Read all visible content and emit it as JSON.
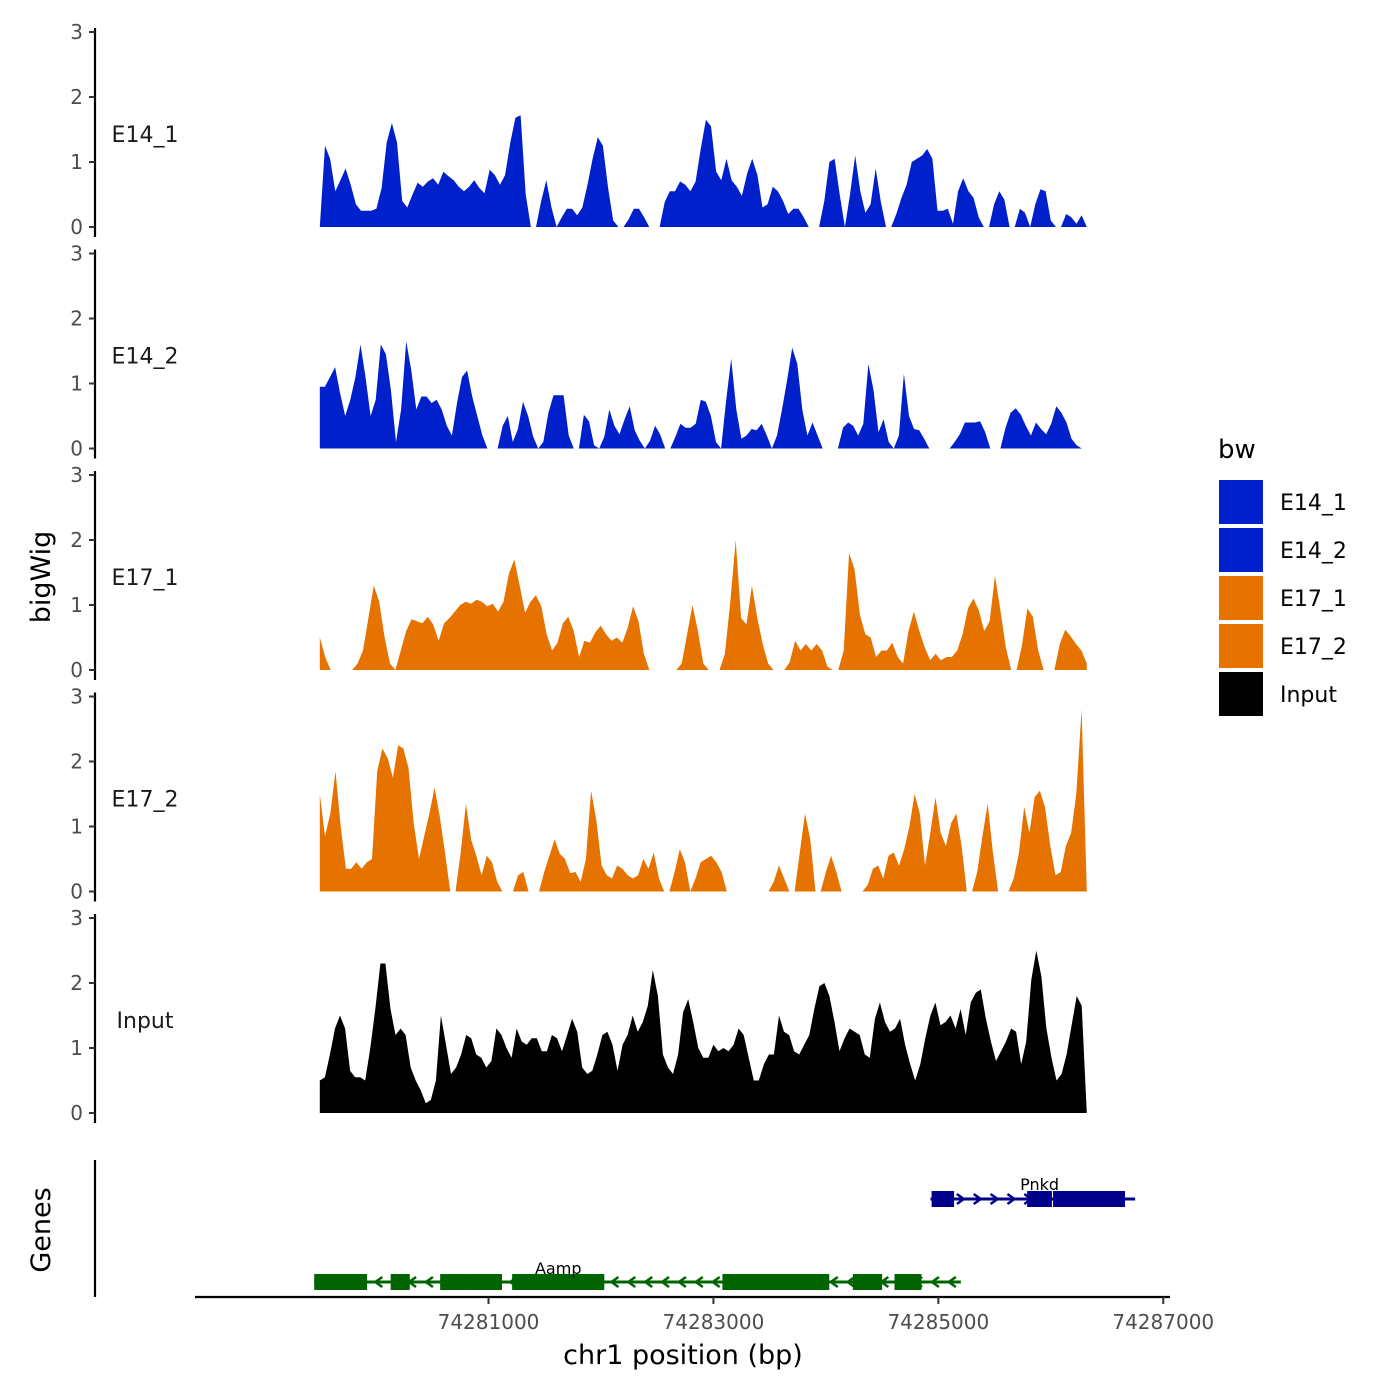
{
  "chart_data": {
    "type": "area",
    "title": "",
    "ylabel": "bigWig",
    "xlabel": "chr1 position (bp)",
    "xlim": [
      74278390,
      74287060
    ],
    "ylim": [
      0,
      3
    ],
    "y_ticks": [
      "0",
      "1",
      "2",
      "3"
    ],
    "x_ticks": [
      {
        "value": 74281000,
        "label": "74281000"
      },
      {
        "value": 74283000,
        "label": "74283000"
      },
      {
        "value": 74285000,
        "label": "74285000"
      },
      {
        "value": 74287000,
        "label": "74287000"
      }
    ],
    "series_x_range": [
      74279500,
      74286320
    ],
    "series": [
      {
        "name": "E14_1",
        "color": "#0020cc",
        "values": [
          0,
          1.25,
          1.05,
          0.55,
          0.72,
          0.9,
          0.65,
          0.35,
          0.25,
          0.25,
          0.25,
          0.28,
          0.6,
          1.3,
          1.6,
          1.3,
          0.4,
          0.3,
          0.5,
          0.68,
          0.62,
          0.7,
          0.75,
          0.65,
          0.85,
          0.78,
          0.72,
          0.62,
          0.55,
          0.62,
          0.72,
          0.6,
          0.52,
          0.88,
          0.8,
          0.65,
          0.8,
          1.3,
          1.68,
          1.72,
          0.5,
          0,
          0,
          0.4,
          0.72,
          0.3,
          0,
          0.15,
          0.28,
          0.28,
          0.18,
          0.3,
          0.65,
          1.05,
          1.38,
          1.25,
          0.6,
          0.1,
          0,
          0,
          0.12,
          0.28,
          0.28,
          0.15,
          0,
          0,
          0,
          0.38,
          0.55,
          0.55,
          0.7,
          0.65,
          0.55,
          0.7,
          1.2,
          1.65,
          1.55,
          0.85,
          0.72,
          1.05,
          0.72,
          0.62,
          0.48,
          0.82,
          1.05,
          0.8,
          0.3,
          0.35,
          0.62,
          0.55,
          0.4,
          0.2,
          0.28,
          0.28,
          0.15,
          0,
          0,
          0,
          0.4,
          1,
          1.05,
          0.5,
          0,
          0.5,
          1.1,
          0.55,
          0.22,
          0.35,
          0.9,
          0.38,
          0,
          0,
          0.2,
          0.45,
          0.65,
          1,
          1.05,
          1.1,
          1.2,
          1.05,
          0.25,
          0.25,
          0.28,
          0.05,
          0.55,
          0.75,
          0.55,
          0.45,
          0.15,
          0,
          0,
          0.35,
          0.55,
          0.42,
          0,
          0,
          0.28,
          0.22,
          0,
          0.35,
          0.58,
          0.55,
          0.1,
          0,
          0,
          0.2,
          0.15,
          0.05,
          0.18,
          0
        ]
      },
      {
        "name": "E14_2",
        "color": "#0020cc",
        "values": [
          0.95,
          0.95,
          1.1,
          1.25,
          0.85,
          0.5,
          0.75,
          1.1,
          1.6,
          1.1,
          0.5,
          0.75,
          1.6,
          1.45,
          0.9,
          0.1,
          0.6,
          1.65,
          1.2,
          0.6,
          0.8,
          0.8,
          0.7,
          0.75,
          0.6,
          0.35,
          0.2,
          0.7,
          1.1,
          1.2,
          0.8,
          0.5,
          0.2,
          0,
          0,
          0,
          0.35,
          0.5,
          0.1,
          0.3,
          0.72,
          0.5,
          0.18,
          0,
          0.1,
          0.55,
          0.82,
          0.82,
          0.82,
          0.2,
          0,
          0,
          0.52,
          0.42,
          0.05,
          0,
          0.18,
          0.6,
          0.35,
          0.22,
          0.45,
          0.65,
          0.28,
          0.12,
          0,
          0.12,
          0.35,
          0.22,
          0,
          0,
          0.18,
          0.38,
          0.32,
          0.32,
          0.38,
          0.75,
          0.72,
          0.5,
          0.1,
          0,
          0.75,
          1.38,
          0.6,
          0.15,
          0.2,
          0.3,
          0.28,
          0.38,
          0.2,
          0,
          0.2,
          0.6,
          1.05,
          1.55,
          1.3,
          0.6,
          0.2,
          0.4,
          0.2,
          0,
          0,
          0,
          0,
          0.32,
          0.4,
          0.35,
          0.2,
          0.38,
          1.3,
          0.9,
          0.25,
          0.45,
          0.1,
          0,
          0.2,
          1.15,
          0.5,
          0.3,
          0.28,
          0.15,
          0,
          0,
          0,
          0,
          0,
          0.1,
          0.22,
          0.4,
          0.4,
          0.4,
          0.42,
          0.25,
          0,
          0,
          0,
          0.32,
          0.55,
          0.62,
          0.52,
          0.35,
          0.2,
          0.4,
          0.3,
          0.22,
          0.38,
          0.65,
          0.55,
          0.4,
          0.15,
          0.05,
          0,
          0
        ]
      },
      {
        "name": "E17_1",
        "color": "#e67300",
        "values": [
          0.5,
          0.2,
          0,
          0,
          0,
          0,
          0,
          0.1,
          0.3,
          0.8,
          1.3,
          1.05,
          0.5,
          0.1,
          0,
          0.3,
          0.6,
          0.78,
          0.75,
          0.72,
          0.82,
          0.7,
          0.45,
          0.72,
          0.8,
          0.9,
          1,
          1.05,
          1.02,
          1.08,
          1.05,
          0.98,
          1.02,
          0.9,
          1.05,
          1.48,
          1.7,
          1.3,
          0.88,
          1.05,
          1.15,
          0.98,
          0.55,
          0.3,
          0.42,
          0.72,
          0.82,
          0.6,
          0.2,
          0.45,
          0.42,
          0.58,
          0.68,
          0.55,
          0.45,
          0.5,
          0.42,
          0.65,
          0.98,
          0.75,
          0.25,
          0,
          0,
          0,
          0,
          0,
          0,
          0.1,
          0.55,
          1,
          0.6,
          0.1,
          0,
          0,
          0,
          0.25,
          1.05,
          2,
          0.8,
          0.7,
          1.3,
          0.8,
          0.4,
          0.1,
          0,
          0,
          0,
          0.12,
          0.45,
          0.3,
          0.4,
          0.3,
          0.4,
          0.3,
          0.05,
          0,
          0,
          0.3,
          1.8,
          1.55,
          0.85,
          0.55,
          0.5,
          0.2,
          0.3,
          0.3,
          0.42,
          0.2,
          0.1,
          0.6,
          0.9,
          0.6,
          0.35,
          0.15,
          0.25,
          0.15,
          0.2,
          0.2,
          0.3,
          0.55,
          0.95,
          1.1,
          0.92,
          0.6,
          0.75,
          1.45,
          0.92,
          0.35,
          0,
          0,
          0.38,
          0.95,
          0.82,
          0.3,
          0,
          0,
          0,
          0.4,
          0.62,
          0.52,
          0.4,
          0.3,
          0.1
        ]
      },
      {
        "name": "E17_2",
        "color": "#e67300",
        "values": [
          1.5,
          0.85,
          1.2,
          1.85,
          1,
          0.35,
          0.35,
          0.45,
          0.35,
          0.45,
          0.5,
          1.85,
          2.2,
          2.05,
          1.75,
          2.25,
          2.2,
          1.9,
          1.05,
          0.5,
          0.85,
          1.2,
          1.6,
          1.15,
          0.6,
          0,
          0,
          0.6,
          1.35,
          0.8,
          0.55,
          0.25,
          0.55,
          0.45,
          0.15,
          0,
          0,
          0,
          0.25,
          0.3,
          0,
          0,
          0,
          0.3,
          0.55,
          0.8,
          0.58,
          0.5,
          0.28,
          0.3,
          0.15,
          0.5,
          1.55,
          1.1,
          0.4,
          0.25,
          0.2,
          0.4,
          0.35,
          0.25,
          0.2,
          0.25,
          0.5,
          0.35,
          0.6,
          0.2,
          0,
          0,
          0.3,
          0.65,
          0.45,
          0,
          0.2,
          0.45,
          0.5,
          0.55,
          0.45,
          0.3,
          0,
          0,
          0,
          0,
          0,
          0,
          0,
          0,
          0,
          0.15,
          0.4,
          0.2,
          0,
          0,
          0.6,
          1.2,
          0.8,
          0,
          0,
          0.3,
          0.55,
          0.3,
          0,
          0,
          0,
          0,
          0,
          0.1,
          0.35,
          0.4,
          0.2,
          0.55,
          0.6,
          0.4,
          0.65,
          1,
          1.5,
          1.2,
          0.4,
          0.9,
          1.45,
          0.9,
          0.7,
          1.05,
          1.2,
          0.7,
          0,
          0,
          0.3,
          0.85,
          1.35,
          0.6,
          0,
          0,
          0,
          0.2,
          0.6,
          1.3,
          0.9,
          1.45,
          1.55,
          1.3,
          0.7,
          0.25,
          0.3,
          0.7,
          0.9,
          1.5,
          2.8,
          0
        ]
      },
      {
        "name": "Input",
        "color": "#000000",
        "values": [
          0.5,
          0.55,
          0.9,
          1.3,
          1.5,
          1.3,
          0.65,
          0.55,
          0.55,
          0.5,
          1,
          1.6,
          2.3,
          2.3,
          1.6,
          1.2,
          1.3,
          1.2,
          0.7,
          0.5,
          0.35,
          0.15,
          0.2,
          0.5,
          1.5,
          1.05,
          0.6,
          0.7,
          0.9,
          1.2,
          1.15,
          0.9,
          0.85,
          0.7,
          0.8,
          1.3,
          1.2,
          1,
          0.85,
          1.3,
          1.1,
          1.05,
          1.15,
          1.15,
          0.95,
          0.95,
          1.2,
          1.15,
          0.95,
          1.2,
          1.45,
          1.25,
          0.7,
          0.6,
          0.65,
          0.9,
          1.2,
          1.25,
          1.05,
          0.65,
          1.05,
          1.2,
          1.5,
          1.25,
          1.4,
          1.65,
          2.2,
          1.8,
          0.9,
          0.7,
          0.6,
          0.9,
          1.55,
          1.75,
          1.4,
          1,
          0.85,
          0.85,
          1.05,
          0.95,
          1,
          0.95,
          1.05,
          1.3,
          1.2,
          0.85,
          0.5,
          0.5,
          0.75,
          0.9,
          0.9,
          1.5,
          1.25,
          1.2,
          0.95,
          0.9,
          1.05,
          1.2,
          1.6,
          1.95,
          2,
          1.8,
          1.4,
          0.95,
          1.15,
          1.3,
          1.25,
          1.2,
          0.9,
          0.85,
          1.45,
          1.7,
          1.4,
          1.25,
          1.3,
          1.45,
          1.05,
          0.75,
          0.5,
          0.75,
          1.15,
          1.5,
          1.7,
          1.35,
          1.4,
          1.5,
          1.3,
          1.6,
          1.2,
          1.7,
          1.85,
          1.9,
          1.45,
          1.1,
          0.8,
          0.95,
          1.1,
          1.3,
          1.25,
          0.75,
          1.1,
          2.05,
          2.5,
          2.1,
          1.3,
          0.85,
          0.5,
          0.6,
          0.9,
          1.35,
          1.8,
          1.65,
          0
        ]
      }
    ],
    "legend": {
      "title": "bw",
      "items": [
        {
          "label": "E14_1",
          "color": "#0020cc"
        },
        {
          "label": "E14_2",
          "color": "#0020cc"
        },
        {
          "label": "E17_1",
          "color": "#e67300"
        },
        {
          "label": "E17_2",
          "color": "#e67300"
        },
        {
          "label": "Input",
          "color": "#000000"
        }
      ]
    },
    "genes_track": {
      "ylabel": "Genes",
      "genes": [
        {
          "name": "Pnkd",
          "color": "#00008b",
          "strand": "+",
          "start": 74284930,
          "end": 74286750,
          "exons": [
            [
              74284940,
              74285140
            ],
            [
              74285790,
              74286010
            ],
            [
              74286020,
              74286660
            ]
          ]
        },
        {
          "name": "Aamp",
          "color": "#006400",
          "strand": "-",
          "start": 74279450,
          "end": 74285200,
          "exons": [
            [
              74279450,
              74279920
            ],
            [
              74280130,
              74280300
            ],
            [
              74280570,
              74280800
            ],
            [
              74280800,
              74281120
            ],
            [
              74281210,
              74282030
            ],
            [
              74283080,
              74284030
            ],
            [
              74284240,
              74284500
            ],
            [
              74284610,
              74284850
            ]
          ]
        }
      ]
    }
  }
}
